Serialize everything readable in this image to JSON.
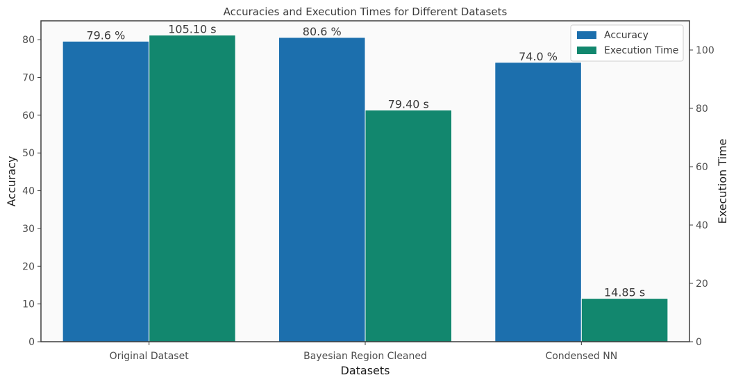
{
  "chart_data": {
    "type": "bar",
    "title": "Accuracies and Execution Times for Different Datasets",
    "xlabel": "Datasets",
    "ylabel": "Accuracy",
    "y2label": "Execution Time",
    "categories": [
      "Original Dataset",
      "Bayesian Region Cleaned",
      "Condensed NN"
    ],
    "ylim": [
      0,
      85
    ],
    "y2lim": [
      0,
      110
    ],
    "yticks": [
      0,
      10,
      20,
      30,
      40,
      50,
      60,
      70,
      80
    ],
    "y2ticks": [
      0,
      20,
      40,
      60,
      80,
      100
    ],
    "grid": false,
    "legend_position": "top-right",
    "series": [
      {
        "name": "Accuracy",
        "axis": "left",
        "color": "#1c6fad",
        "values": [
          79.6,
          80.6,
          74.0
        ],
        "labels": [
          "79.6 %",
          "80.6 %",
          "74.0 %"
        ]
      },
      {
        "name": "Execution Time",
        "axis": "right",
        "color": "#12876e",
        "values": [
          105.1,
          79.4,
          14.85
        ],
        "labels": [
          "105.10 s",
          "79.40 s",
          "14.85 s"
        ]
      }
    ]
  }
}
